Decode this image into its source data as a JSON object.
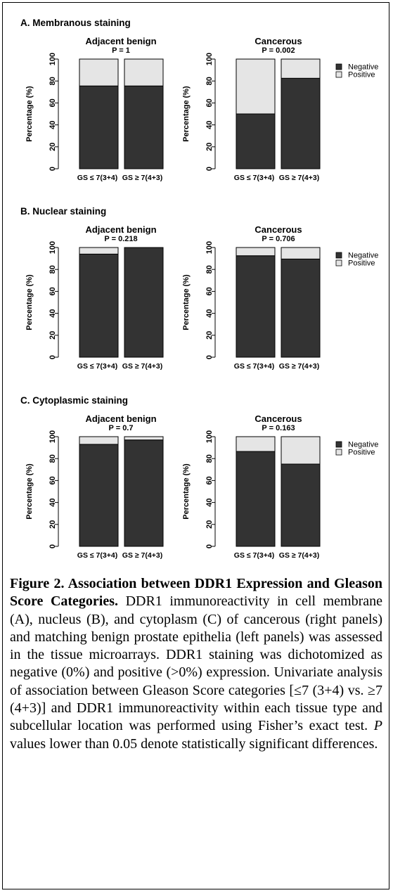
{
  "figure": {
    "y_axis_label": "Percentage (%)",
    "y_ticks": [
      "0",
      "20",
      "40",
      "60",
      "80",
      "100"
    ],
    "categories": [
      "GS ≤ 7(3+4)",
      "GS ≥ 7(4+3)"
    ],
    "legend": [
      "Negative",
      "Positive"
    ],
    "colors": {
      "negative": "#333333",
      "positive": "#e5e5e5",
      "stroke": "#000000"
    }
  },
  "chart_data": [
    {
      "type": "bar",
      "stacked": true,
      "section": "A. Membranous staining",
      "title": "Adjacent benign",
      "subtitle": "P = 1",
      "categories": [
        "GS ≤ 7(3+4)",
        "GS ≥ 7(4+3)"
      ],
      "ylabel": "Percentage (%)",
      "ylim": [
        0,
        100
      ],
      "series": [
        {
          "name": "Negative",
          "values": [
            75.5,
            75.5
          ]
        },
        {
          "name": "Positive",
          "values": [
            24.5,
            24.5
          ]
        }
      ]
    },
    {
      "type": "bar",
      "stacked": true,
      "section": "A. Membranous staining",
      "title": "Cancerous",
      "subtitle": "P = 0.002",
      "categories": [
        "GS ≤ 7(3+4)",
        "GS ≥ 7(4+3)"
      ],
      "ylabel": "Percentage (%)",
      "ylim": [
        0,
        100
      ],
      "legend": "right",
      "series": [
        {
          "name": "Negative",
          "values": [
            50,
            82.5
          ]
        },
        {
          "name": "Positive",
          "values": [
            50,
            17.5
          ]
        }
      ]
    },
    {
      "type": "bar",
      "stacked": true,
      "section": "B. Nuclear staining",
      "title": "Adjacent benign",
      "subtitle": "P = 0.218",
      "categories": [
        "GS ≤ 7(3+4)",
        "GS ≥ 7(4+3)"
      ],
      "ylabel": "Percentage (%)",
      "ylim": [
        0,
        100
      ],
      "series": [
        {
          "name": "Negative",
          "values": [
            94,
            100
          ]
        },
        {
          "name": "Positive",
          "values": [
            6,
            0
          ]
        }
      ]
    },
    {
      "type": "bar",
      "stacked": true,
      "section": "B. Nuclear staining",
      "title": "Cancerous",
      "subtitle": "P = 0.706",
      "categories": [
        "GS ≤ 7(3+4)",
        "GS ≥ 7(4+3)"
      ],
      "ylabel": "Percentage (%)",
      "ylim": [
        0,
        100
      ],
      "legend": "right",
      "series": [
        {
          "name": "Negative",
          "values": [
            92.5,
            89.5
          ]
        },
        {
          "name": "Positive",
          "values": [
            7.5,
            10.5
          ]
        }
      ]
    },
    {
      "type": "bar",
      "stacked": true,
      "section": "C. Cytoplasmic staining",
      "title": "Adjacent benign",
      "subtitle": "P = 0.7",
      "categories": [
        "GS ≤ 7(3+4)",
        "GS ≥ 7(4+3)"
      ],
      "ylabel": "Percentage (%)",
      "ylim": [
        0,
        100
      ],
      "series": [
        {
          "name": "Negative",
          "values": [
            93,
            97
          ]
        },
        {
          "name": "Positive",
          "values": [
            7,
            3
          ]
        }
      ]
    },
    {
      "type": "bar",
      "stacked": true,
      "section": "C. Cytoplasmic staining",
      "title": "Cancerous",
      "subtitle": "P = 0.163",
      "categories": [
        "GS ≤ 7(3+4)",
        "GS ≥ 7(4+3)"
      ],
      "ylabel": "Percentage (%)",
      "ylim": [
        0,
        100
      ],
      "legend": "right",
      "series": [
        {
          "name": "Negative",
          "values": [
            86.5,
            75
          ]
        },
        {
          "name": "Positive",
          "values": [
            13.5,
            25
          ]
        }
      ]
    }
  ],
  "caption": {
    "title": "Figure 2. Association between DDR1 Expression and Gleason Score Categories.",
    "part1": " DDR1 immunoreactivity in cell membrane (A), nucleus (B), and cytoplasm (C) of cancerous (right panels) and matching benign prostate epithelia (left panels) was assessed in the tissue microarrays. DDR1 staining was dichotomized as negative (0%) and positive (>0%) expression. Univariate analysis of association between Gleason Score categories [≤7 (3+4) vs. ≥7 (4+3)] and DDR1 immunoreactivity within each tissue type and subcellular location was performed using Fisher’s exact test. ",
    "p_italic": "P",
    "part2": " values lower than 0.05 denote statistically significant differences."
  }
}
